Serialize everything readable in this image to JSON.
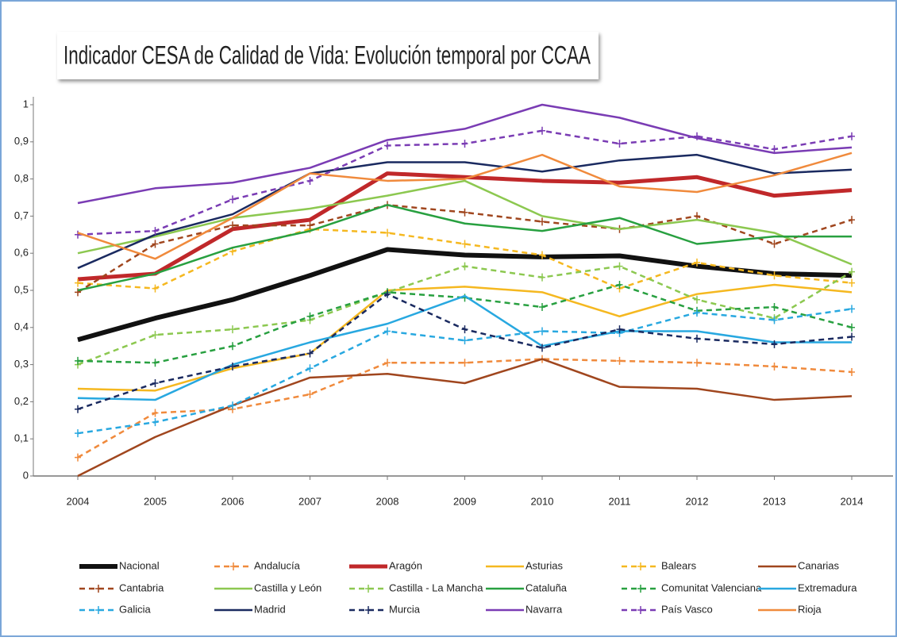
{
  "chart_data": {
    "type": "line",
    "title": "Indicador CESA de Calidad de Vida: Evolución temporal por CCAA",
    "categories": [
      "2004",
      "2005",
      "2006",
      "2007",
      "2008",
      "2009",
      "2010",
      "2011",
      "2012",
      "2013",
      "2014"
    ],
    "ylim": [
      0,
      1
    ],
    "yticks": [
      0,
      {
        "value": 0.1,
        "label": "0,1"
      },
      {
        "value": 0.2,
        "label": "0,2"
      },
      {
        "value": 0.3,
        "label": "0,3"
      },
      {
        "value": 0.4,
        "label": "0,4"
      },
      {
        "value": 0.5,
        "label": "0,5"
      },
      {
        "value": 0.6,
        "label": "0,6"
      },
      {
        "value": 0.7,
        "label": "0,7"
      },
      {
        "value": 0.8,
        "label": "0,8"
      },
      {
        "value": 0.9,
        "label": "0,9"
      },
      1
    ],
    "series": [
      {
        "name": "Nacional",
        "color": "#111111",
        "dashed": false,
        "width": 6,
        "values": [
          0.367,
          0.425,
          0.475,
          0.54,
          0.61,
          0.595,
          0.59,
          0.593,
          0.565,
          0.545,
          0.54
        ]
      },
      {
        "name": "Andalucía",
        "color": "#f08a3c",
        "dashed": true,
        "width": 2.5,
        "values": [
          0.05,
          0.17,
          0.18,
          0.22,
          0.305,
          0.305,
          0.315,
          0.31,
          0.305,
          0.295,
          0.28
        ]
      },
      {
        "name": "Aragón",
        "color": "#c0282a",
        "dashed": false,
        "width": 5,
        "values": [
          0.53,
          0.545,
          0.665,
          0.69,
          0.815,
          0.805,
          0.795,
          0.79,
          0.805,
          0.755,
          0.77
        ]
      },
      {
        "name": "Asturias",
        "color": "#f5b820",
        "dashed": false,
        "width": 2.5,
        "values": [
          0.235,
          0.23,
          0.29,
          0.33,
          0.5,
          0.51,
          0.495,
          0.43,
          0.49,
          0.515,
          0.495
        ]
      },
      {
        "name": "Balears",
        "color": "#f5b820",
        "dashed": true,
        "width": 2.5,
        "values": [
          0.52,
          0.505,
          0.605,
          0.665,
          0.655,
          0.625,
          0.595,
          0.505,
          0.575,
          0.54,
          0.52
        ]
      },
      {
        "name": "Canarias",
        "color": "#a0461e",
        "dashed": false,
        "width": 2.5,
        "values": [
          0.0,
          0.105,
          0.19,
          0.265,
          0.275,
          0.25,
          0.315,
          0.24,
          0.235,
          0.205,
          0.215
        ]
      },
      {
        "name": "Cantabria",
        "color": "#a0461e",
        "dashed": true,
        "width": 2.5,
        "values": [
          0.495,
          0.625,
          0.675,
          0.675,
          0.73,
          0.71,
          0.685,
          0.665,
          0.7,
          0.625,
          0.69
        ]
      },
      {
        "name": "Castilla y León",
        "color": "#8cc850",
        "dashed": false,
        "width": 2.5,
        "values": [
          0.6,
          0.645,
          0.695,
          0.72,
          0.755,
          0.795,
          0.7,
          0.665,
          0.69,
          0.655,
          0.57
        ]
      },
      {
        "name": "Castilla - La Mancha",
        "color": "#8cc850",
        "dashed": true,
        "width": 2.5,
        "values": [
          0.3,
          0.38,
          0.395,
          0.42,
          0.495,
          0.565,
          0.535,
          0.565,
          0.475,
          0.425,
          0.55
        ]
      },
      {
        "name": "Cataluña",
        "color": "#28a040",
        "dashed": false,
        "width": 2.5,
        "values": [
          0.5,
          0.545,
          0.615,
          0.66,
          0.73,
          0.68,
          0.66,
          0.695,
          0.625,
          0.645,
          0.645
        ]
      },
      {
        "name": "Comunitat Valenciana",
        "color": "#28a040",
        "dashed": true,
        "width": 2.5,
        "values": [
          0.31,
          0.305,
          0.35,
          0.43,
          0.495,
          0.48,
          0.455,
          0.515,
          0.445,
          0.455,
          0.4
        ]
      },
      {
        "name": "Extremadura",
        "color": "#28a8e0",
        "dashed": false,
        "width": 2.5,
        "values": [
          0.21,
          0.205,
          0.3,
          0.36,
          0.41,
          0.485,
          0.35,
          0.39,
          0.39,
          0.36,
          0.36
        ]
      },
      {
        "name": "Galicia",
        "color": "#28a8e0",
        "dashed": true,
        "width": 2.5,
        "values": [
          0.115,
          0.145,
          0.19,
          0.29,
          0.39,
          0.365,
          0.39,
          0.385,
          0.44,
          0.42,
          0.45
        ]
      },
      {
        "name": "Madrid",
        "color": "#1a2a60",
        "dashed": false,
        "width": 2.5,
        "values": [
          0.56,
          0.65,
          0.705,
          0.815,
          0.845,
          0.845,
          0.82,
          0.85,
          0.865,
          0.815,
          0.825
        ]
      },
      {
        "name": "Murcia",
        "color": "#1a2a60",
        "dashed": true,
        "width": 2.5,
        "values": [
          0.18,
          0.25,
          0.295,
          0.33,
          0.49,
          0.395,
          0.345,
          0.395,
          0.37,
          0.355,
          0.375
        ]
      },
      {
        "name": "Navarra",
        "color": "#7a3cb4",
        "dashed": false,
        "width": 2.5,
        "values": [
          0.735,
          0.775,
          0.79,
          0.83,
          0.905,
          0.935,
          1.0,
          0.965,
          0.91,
          0.87,
          0.885
        ]
      },
      {
        "name": "País Vasco",
        "color": "#7a3cb4",
        "dashed": true,
        "width": 2.5,
        "values": [
          0.65,
          0.66,
          0.745,
          0.795,
          0.89,
          0.895,
          0.93,
          0.895,
          0.915,
          0.88,
          0.915
        ]
      },
      {
        "name": "Rioja",
        "color": "#f08a3c",
        "dashed": false,
        "width": 2.5,
        "values": [
          0.655,
          0.585,
          0.695,
          0.815,
          0.795,
          0.8,
          0.865,
          0.78,
          0.765,
          0.81,
          0.87
        ]
      }
    ]
  }
}
